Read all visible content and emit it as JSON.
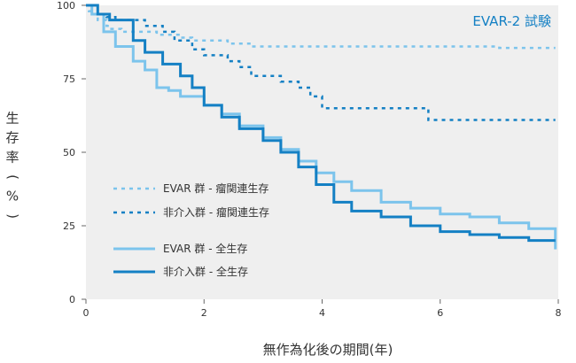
{
  "chart_data": {
    "type": "line",
    "annotation": "EVAR-2 試験",
    "xlabel": "無作為化後の期間(年)",
    "ylabel": "生存率(%)",
    "xlim": [
      0,
      8
    ],
    "ylim": [
      0,
      100
    ],
    "xticks": [
      "0",
      "2",
      "4",
      "6",
      "8"
    ],
    "yticks": [
      "0",
      "25",
      "50",
      "75",
      "100"
    ],
    "grid": false,
    "plot_background": "#efefef",
    "legend_position": "lower-left",
    "series": [
      {
        "name": "EVAR 群 - 瘤関連生存",
        "color": "#7cc4ec",
        "style": "dotted",
        "x": [
          0,
          0.05,
          0.1,
          0.2,
          0.35,
          0.4,
          0.6,
          1.0,
          1.2,
          1.6,
          1.8,
          2.4,
          2.8,
          3.5,
          4.0,
          5.0,
          6.0,
          7.0,
          7.95
        ],
        "y": [
          100,
          98,
          97,
          95,
          93,
          92,
          91,
          91,
          90,
          89,
          88,
          87,
          86,
          86,
          86,
          86,
          86,
          85.5,
          85.5
        ]
      },
      {
        "name": "非介入群 - 瘤関連生存",
        "color": "#1480c4",
        "style": "dotted",
        "x": [
          0,
          0.2,
          0.35,
          0.5,
          1.0,
          1.3,
          1.5,
          1.8,
          2.0,
          2.4,
          2.6,
          2.8,
          3.3,
          3.6,
          3.8,
          4.0,
          4.4,
          5.5,
          5.8,
          7.95
        ],
        "y": [
          100,
          97,
          96,
          95,
          93,
          91,
          88,
          85,
          83,
          81,
          79,
          76,
          74,
          72,
          69,
          65,
          65,
          65,
          61,
          61
        ]
      },
      {
        "name": "EVAR 群 - 全生存",
        "color": "#7cc4ec",
        "style": "solid",
        "x": [
          0,
          0.1,
          0.3,
          0.5,
          0.8,
          1.0,
          1.2,
          1.4,
          1.6,
          2.0,
          2.3,
          2.6,
          3.0,
          3.3,
          3.6,
          3.9,
          4.2,
          4.5,
          5.0,
          5.5,
          6.0,
          6.5,
          7.0,
          7.5,
          7.95
        ],
        "y": [
          100,
          97,
          91,
          86,
          81,
          78,
          72,
          71,
          69,
          66,
          63,
          59,
          55,
          51,
          47,
          43,
          40,
          37,
          33,
          31,
          29,
          28,
          26,
          24,
          17
        ]
      },
      {
        "name": "非介入群 - 全生存",
        "color": "#1480c4",
        "style": "solid",
        "x": [
          0,
          0.2,
          0.4,
          0.8,
          1.0,
          1.3,
          1.6,
          1.8,
          2.0,
          2.3,
          2.6,
          3.0,
          3.3,
          3.6,
          3.9,
          4.2,
          4.5,
          5.0,
          5.5,
          6.0,
          6.5,
          7.0,
          7.5,
          7.95
        ],
        "y": [
          100,
          97,
          95,
          88,
          84,
          80,
          76,
          72,
          66,
          62,
          58,
          54,
          50,
          45,
          39,
          33,
          30,
          28,
          25,
          23,
          22,
          21,
          20,
          20
        ]
      }
    ]
  }
}
